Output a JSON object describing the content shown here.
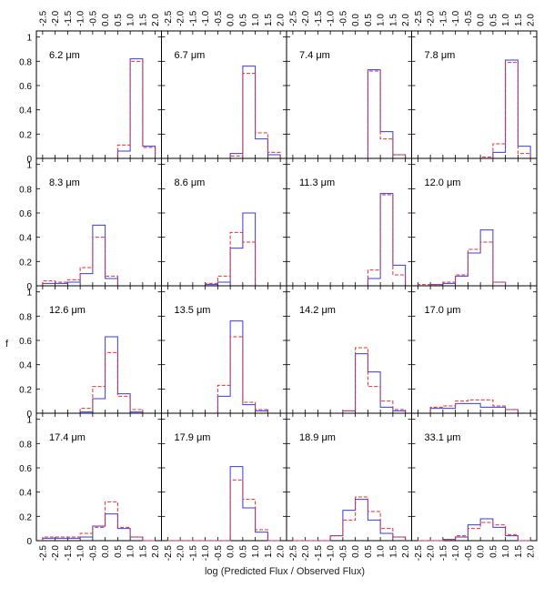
{
  "chart_data": {
    "type": "bar",
    "layout": "4x4 grid of step histograms sharing axes",
    "xlabel": "log (Predicted Flux / Observed Flux)",
    "ylabel": "f",
    "xlim": [
      -2.75,
      2.25
    ],
    "ylim": [
      0,
      1.05
    ],
    "xticks": [
      "-2.5",
      "-2.0",
      "-1.5",
      "-1.0",
      "-0.5",
      "0.0",
      "0.5",
      "1.0",
      "1.5",
      "2.0"
    ],
    "yticks": [
      "0",
      "0.2",
      "0.4",
      "0.6",
      "0.8",
      "1"
    ],
    "bin_edges": [
      -2.5,
      -2.0,
      -1.5,
      -1.0,
      -0.5,
      0.0,
      0.5,
      1.0,
      1.5,
      2.0
    ],
    "series_styles": [
      {
        "key": "solid",
        "style": "solid",
        "color": "#3a3ae0"
      },
      {
        "key": "dashed",
        "style": "dashed",
        "color": "#e03030"
      }
    ],
    "panels": [
      {
        "label": "6.2 μm",
        "solid": [
          0,
          0,
          0,
          0,
          0,
          0,
          0.06,
          0.82,
          0.1
        ],
        "dashed": [
          0,
          0,
          0,
          0,
          0,
          0,
          0.11,
          0.8,
          0.09
        ]
      },
      {
        "label": "6.7 μm",
        "solid": [
          0,
          0,
          0,
          0,
          0,
          0.04,
          0.76,
          0.16,
          0.03
        ],
        "dashed": [
          0,
          0,
          0,
          0,
          0,
          0.02,
          0.7,
          0.21,
          0.05
        ]
      },
      {
        "label": "7.4 μm",
        "solid": [
          0,
          0,
          0,
          0,
          0,
          0,
          0.73,
          0.22,
          0.03
        ],
        "dashed": [
          0,
          0,
          0,
          0,
          0,
          0,
          0.72,
          0.16,
          0.03
        ]
      },
      {
        "label": "7.8 μm",
        "solid": [
          0,
          0,
          0,
          0,
          0,
          0,
          0.05,
          0.81,
          0.1
        ],
        "dashed": [
          0,
          0,
          0,
          0,
          0,
          0.01,
          0.12,
          0.79,
          0.04
        ]
      },
      {
        "label": "8.3 μm",
        "solid": [
          0.02,
          0.02,
          0.03,
          0.1,
          0.5,
          0.06,
          0,
          0,
          0
        ],
        "dashed": [
          0.04,
          0.03,
          0.05,
          0.15,
          0.4,
          0.08,
          0,
          0,
          0
        ]
      },
      {
        "label": "8.6 μm",
        "solid": [
          0,
          0,
          0,
          0.01,
          0.03,
          0.31,
          0.6,
          0,
          0
        ],
        "dashed": [
          0,
          0,
          0,
          0.02,
          0.08,
          0.44,
          0.36,
          0,
          0
        ]
      },
      {
        "label": "11.3 μm",
        "solid": [
          0,
          0,
          0,
          0,
          0,
          0,
          0.06,
          0.76,
          0.17
        ],
        "dashed": [
          0,
          0,
          0,
          0,
          0,
          0,
          0.13,
          0.75,
          0.09
        ]
      },
      {
        "label": "12.0 μm",
        "solid": [
          0,
          0.01,
          0.02,
          0.08,
          0.27,
          0.46,
          0.03,
          0,
          0
        ],
        "dashed": [
          0.01,
          0.01,
          0.03,
          0.09,
          0.3,
          0.36,
          0.03,
          0,
          0
        ]
      },
      {
        "label": "12.6 μm",
        "solid": [
          0,
          0,
          0,
          0.01,
          0.12,
          0.63,
          0.16,
          0.01,
          0
        ],
        "dashed": [
          0,
          0,
          0,
          0.04,
          0.22,
          0.5,
          0.14,
          0.03,
          0
        ]
      },
      {
        "label": "13.5 μm",
        "solid": [
          0,
          0,
          0,
          0,
          0.14,
          0.76,
          0.07,
          0.02,
          0
        ],
        "dashed": [
          0,
          0,
          0,
          0,
          0.23,
          0.63,
          0.09,
          0.03,
          0
        ]
      },
      {
        "label": "14.2 μm",
        "solid": [
          0,
          0,
          0,
          0,
          0.02,
          0.49,
          0.34,
          0.05,
          0.02
        ],
        "dashed": [
          0,
          0,
          0,
          0,
          0.02,
          0.54,
          0.22,
          0.1,
          0.03
        ]
      },
      {
        "label": "17.0 μm",
        "solid": [
          0,
          0.04,
          0.04,
          0.08,
          0.08,
          0.05,
          0.05,
          0.03,
          0
        ],
        "dashed": [
          0,
          0.05,
          0.06,
          0.1,
          0.11,
          0.11,
          0.06,
          0.03,
          0
        ]
      },
      {
        "label": "17.4 μm",
        "solid": [
          0.02,
          0.02,
          0.02,
          0.03,
          0.12,
          0.22,
          0.1,
          0.03,
          0
        ],
        "dashed": [
          0.03,
          0.03,
          0.03,
          0.06,
          0.11,
          0.32,
          0.11,
          0.03,
          0
        ]
      },
      {
        "label": "17.9 μm",
        "solid": [
          0,
          0,
          0,
          0,
          0,
          0.61,
          0.27,
          0.07,
          0
        ],
        "dashed": [
          0,
          0,
          0,
          0,
          0,
          0.5,
          0.34,
          0.09,
          0
        ]
      },
      {
        "label": "18.9 μm",
        "solid": [
          0,
          0,
          0,
          0.04,
          0.25,
          0.34,
          0.17,
          0.06,
          0.03
        ],
        "dashed": [
          0,
          0,
          0,
          0.04,
          0.17,
          0.36,
          0.24,
          0.1,
          0.03
        ]
      },
      {
        "label": "33.1 μm",
        "solid": [
          0,
          0,
          0.01,
          0.03,
          0.13,
          0.18,
          0.11,
          0.04,
          0
        ],
        "dashed": [
          0,
          0,
          0.01,
          0.04,
          0.1,
          0.15,
          0.13,
          0.05,
          0
        ]
      }
    ]
  }
}
